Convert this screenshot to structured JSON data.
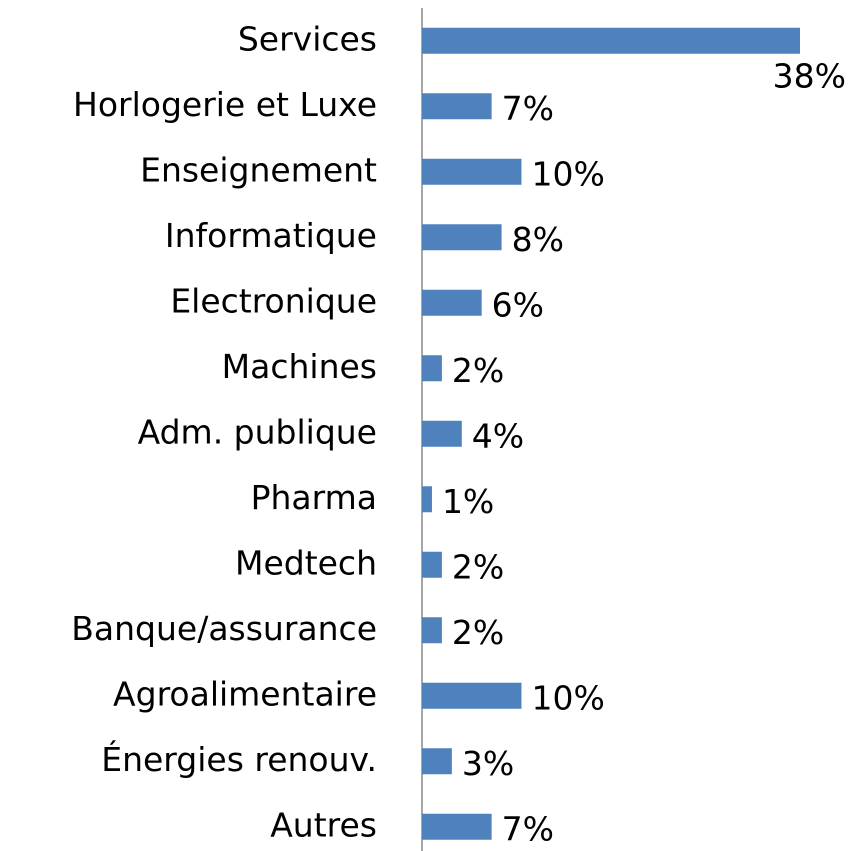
{
  "chart_data": {
    "type": "bar",
    "orientation": "horizontal",
    "color": "#4f81bd",
    "categories": [
      "Services",
      "Horlogerie et Luxe",
      "Enseignement",
      "Informatique",
      "Electronique",
      "Machines",
      "Adm. publique",
      "Pharma",
      "Medtech",
      "Banque/assurance",
      "Agroalimentaire",
      "Énergies renouv.",
      "Autres"
    ],
    "values": [
      38,
      7,
      10,
      8,
      6,
      2,
      4,
      1,
      2,
      2,
      10,
      3,
      7
    ],
    "value_labels": [
      "38%",
      "7%",
      "10%",
      "8%",
      "6%",
      "2%",
      "4%",
      "1%",
      "2%",
      "2%",
      "10%",
      "3%",
      "7%"
    ]
  }
}
